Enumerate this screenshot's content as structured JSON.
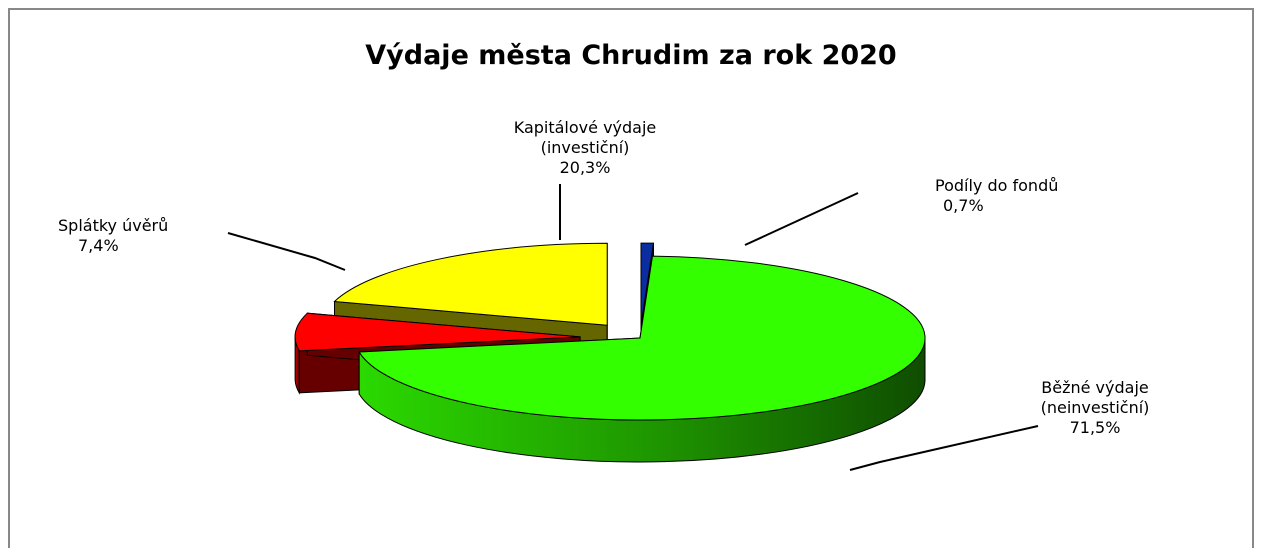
{
  "chart_data": {
    "type": "pie3d",
    "title": "Výdaje města Chrudim za rok 2020",
    "categories": [
      "Podíly do fondů",
      "Běžné výdaje (neinvestiční)",
      "Splátky úvěrů",
      "Kapitálové výdaje (investiční)"
    ],
    "values": [
      0.7,
      71.5,
      7.4,
      20.3
    ],
    "value_labels": [
      "0,7%",
      "71,5%",
      "7,4%",
      "20,3%"
    ],
    "colors": [
      "#0a2ea0",
      "#33ff00",
      "#ff0000",
      "#ffff00"
    ]
  }
}
